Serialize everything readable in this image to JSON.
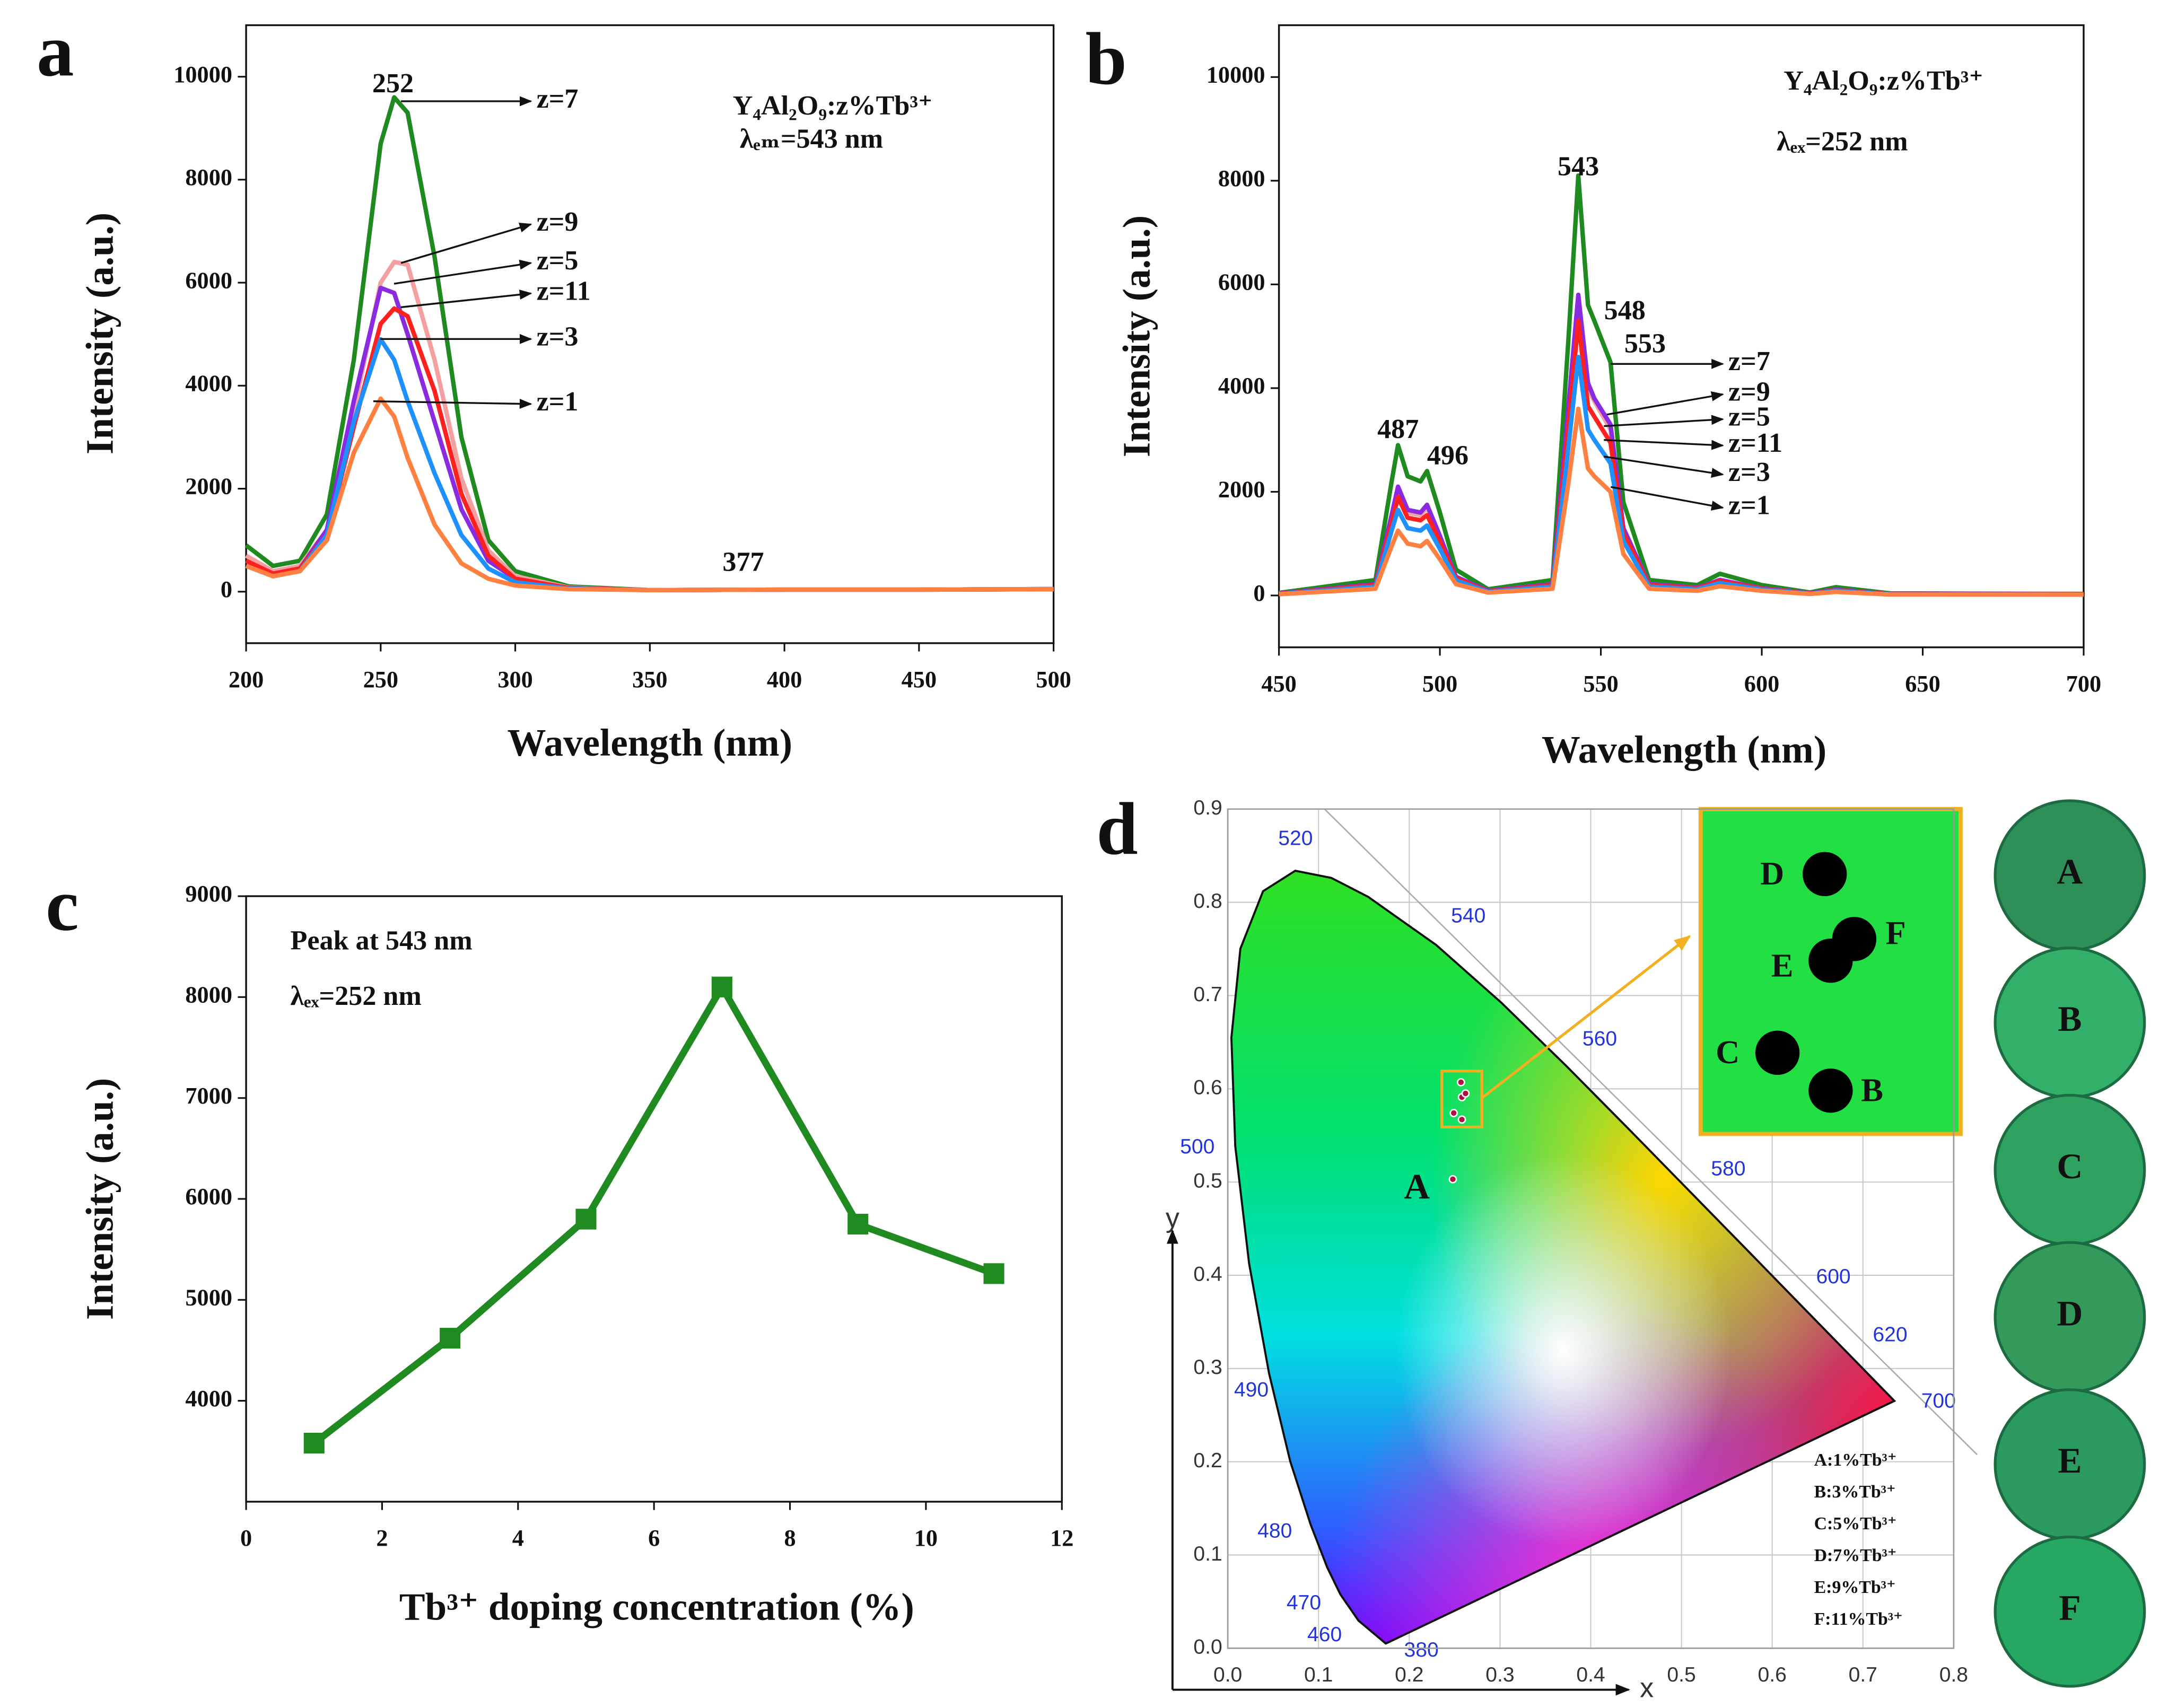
{
  "chart_data": [
    {
      "type": "line",
      "label": "a",
      "title": "Y₄Al₂O₉:z%Tb³⁺",
      "subtitle": "λₑₘ=543 nm",
      "x_label": "Wavelength (nm)",
      "y_label": "Intensity (a.u.)",
      "x": [
        200,
        210,
        220,
        230,
        240,
        250,
        255,
        260,
        270,
        280,
        290,
        300,
        320,
        350,
        400,
        450,
        500
      ],
      "xlim": [
        200,
        500
      ],
      "xticks": [
        200,
        250,
        300,
        350,
        400,
        450,
        500
      ],
      "ylim": [
        -1000,
        11000
      ],
      "yticks": [
        0,
        2000,
        4000,
        6000,
        8000,
        10000
      ],
      "series": [
        {
          "name": "z=7",
          "color": "#1f8a1f",
          "values": [
            900,
            500,
            600,
            1500,
            4500,
            8700,
            9600,
            9300,
            6500,
            3000,
            1000,
            400,
            100,
            30,
            40,
            40,
            50
          ]
        },
        {
          "name": "z=9",
          "color": "#f4a0a0",
          "values": [
            700,
            400,
            500,
            1200,
            3500,
            6000,
            6400,
            6350,
            4500,
            2200,
            800,
            300,
            80,
            30,
            40,
            40,
            50
          ]
        },
        {
          "name": "z=5",
          "color": "#8a2be2",
          "values": [
            600,
            350,
            450,
            1200,
            3700,
            5900,
            5800,
            5000,
            3300,
            1600,
            600,
            250,
            70,
            30,
            40,
            40,
            50
          ]
        },
        {
          "name": "z=11",
          "color": "#ff2020",
          "values": [
            600,
            350,
            450,
            1100,
            3200,
            5200,
            5500,
            5350,
            3900,
            1900,
            700,
            250,
            70,
            30,
            40,
            40,
            50
          ]
        },
        {
          "name": "z=3",
          "color": "#1e90ff",
          "values": [
            500,
            300,
            400,
            1100,
            3300,
            4900,
            4500,
            3700,
            2300,
            1100,
            450,
            180,
            60,
            30,
            40,
            40,
            50
          ]
        },
        {
          "name": "z=1",
          "color": "#ff8040",
          "values": [
            500,
            300,
            400,
            1000,
            2700,
            3750,
            3400,
            2600,
            1300,
            550,
            250,
            120,
            50,
            30,
            40,
            40,
            50
          ]
        }
      ],
      "peak_labels": [
        252,
        377
      ]
    },
    {
      "type": "line",
      "label": "b",
      "title": "Y₄Al₂O₉:z%Tb³⁺",
      "subtitle": "λₑₓ=252 nm",
      "x_label": "Wavelength (nm)",
      "y_label": "Intensity (a.u.)",
      "x": [
        450,
        480,
        485,
        487,
        490,
        494,
        496,
        500,
        505,
        515,
        535,
        540,
        543,
        546,
        548,
        553,
        557,
        565,
        580,
        587,
        600,
        615,
        623,
        640,
        700
      ],
      "xlim": [
        450,
        700
      ],
      "xticks": [
        450,
        500,
        550,
        600,
        650,
        700
      ],
      "ylim": [
        -1000,
        11000
      ],
      "yticks": [
        0,
        2000,
        4000,
        6000,
        8000,
        10000
      ],
      "series": [
        {
          "name": "z=7",
          "color": "#1f8a1f",
          "values": [
            50,
            300,
            2200,
            2900,
            2300,
            2200,
            2400,
            1600,
            500,
            120,
            300,
            5000,
            8100,
            5600,
            5300,
            4500,
            1800,
            300,
            200,
            420,
            200,
            60,
            160,
            40,
            30
          ]
        },
        {
          "name": "z=9",
          "color": "#f4a0a0",
          "values": [
            40,
            210,
            1500,
            2000,
            1600,
            1550,
            1700,
            1100,
            350,
            90,
            220,
            3600,
            5750,
            4000,
            3750,
            3200,
            1300,
            220,
            150,
            300,
            140,
            45,
            110,
            30,
            25
          ]
        },
        {
          "name": "z=5",
          "color": "#8a2be2",
          "values": [
            40,
            220,
            1550,
            2100,
            1650,
            1600,
            1750,
            1150,
            360,
            90,
            220,
            3700,
            5800,
            4100,
            3800,
            3300,
            1300,
            220,
            150,
            300,
            140,
            45,
            115,
            30,
            25
          ]
        },
        {
          "name": "z=11",
          "color": "#ff2020",
          "values": [
            35,
            200,
            1400,
            1900,
            1500,
            1450,
            1550,
            1050,
            330,
            80,
            200,
            3300,
            5300,
            3650,
            3450,
            2950,
            1200,
            200,
            140,
            280,
            130,
            40,
            105,
            30,
            25
          ]
        },
        {
          "name": "z=3",
          "color": "#1e90ff",
          "values": [
            30,
            170,
            1250,
            1650,
            1300,
            1250,
            1350,
            900,
            290,
            70,
            170,
            2900,
            4600,
            3200,
            3000,
            2550,
            1050,
            170,
            120,
            240,
            115,
            35,
            90,
            25,
            20
          ]
        },
        {
          "name": "z=1",
          "color": "#ff8040",
          "values": [
            25,
            130,
            950,
            1250,
            1000,
            950,
            1050,
            700,
            220,
            55,
            130,
            2200,
            3600,
            2450,
            2300,
            2000,
            800,
            130,
            90,
            180,
            90,
            30,
            70,
            20,
            15
          ]
        }
      ],
      "peak_labels": [
        487,
        496,
        543,
        548,
        553
      ]
    },
    {
      "type": "line",
      "label": "c",
      "marker": "square",
      "x_label": "Tb³⁺ doping concentration (%)",
      "y_label": "Intensity (a.u.)",
      "annotations": [
        "Peak at 543 nm",
        "λₑₓ=252 nm"
      ],
      "x": [
        1,
        3,
        5,
        7,
        9,
        11
      ],
      "xlim": [
        0,
        12
      ],
      "xticks": [
        0,
        2,
        4,
        6,
        8,
        10,
        12
      ],
      "ylim": [
        3000,
        9000
      ],
      "yticks": [
        4000,
        5000,
        6000,
        7000,
        8000,
        9000
      ],
      "series": [
        {
          "color": "#1f8a1f",
          "values": [
            3580,
            4620,
            5800,
            8100,
            5750,
            5260
          ]
        }
      ]
    },
    {
      "type": "scatter",
      "label": "d",
      "x_label": "x",
      "y_label": "y",
      "grid": true,
      "categories": [
        "A",
        "B",
        "C",
        "D",
        "E",
        "F"
      ],
      "x": [
        0.248,
        0.258,
        0.249,
        0.257,
        0.258,
        0.262
      ],
      "y": [
        0.503,
        0.567,
        0.574,
        0.607,
        0.591,
        0.595
      ],
      "xlim": [
        0,
        0.8
      ],
      "xticks": [
        {
          "value": 0,
          "label": "0.0"
        },
        0.1,
        0.2,
        0.3,
        0.4,
        0.5,
        0.6,
        0.7,
        0.8
      ],
      "ylim": [
        0,
        0.9
      ],
      "yticks": [
        {
          "value": 0,
          "label": "0.0"
        },
        0.1,
        0.2,
        0.3,
        0.4,
        0.5,
        0.6,
        0.7,
        0.8,
        0.9
      ],
      "wavelength_labels": [
        380,
        460,
        470,
        480,
        490,
        500,
        520,
        540,
        560,
        580,
        600,
        620,
        700
      ],
      "legend": [
        "A:1%Tb³⁺",
        "B:3%Tb³⁺",
        "C:5%Tb³⁺",
        "D:7%Tb³⁺",
        "E:9%Tb³⁺",
        "F:11%Tb³⁺"
      ]
    }
  ]
}
